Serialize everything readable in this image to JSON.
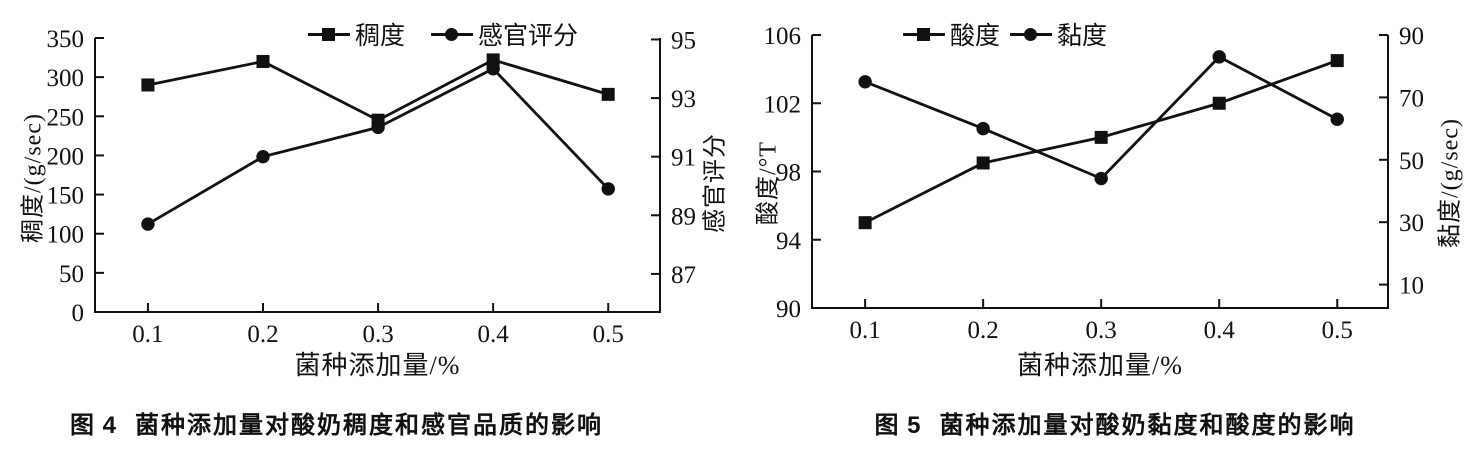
{
  "page": {
    "background": "#ffffff",
    "ink": "#111111"
  },
  "chart_data": [
    {
      "type": "line",
      "caption_label": "图 4",
      "caption_title": "菌种添加量对酸奶稠度和感官品质的影响",
      "legend_position": "top",
      "grid": false,
      "x_axis": {
        "label": "菌种添加量/%",
        "ticks": [
          0.1,
          0.2,
          0.3,
          0.4,
          0.5
        ],
        "range": [
          0.054,
          0.545
        ]
      },
      "left_axis": {
        "label": "稠度/(g/sec)",
        "ticks": [
          0,
          50,
          100,
          150,
          200,
          250,
          300,
          350
        ],
        "range": [
          0,
          350
        ]
      },
      "right_axis": {
        "label": "感官评分",
        "ticks": [
          87,
          89,
          91,
          93,
          95
        ],
        "range": [
          85.7,
          95.05
        ]
      },
      "x": [
        0.1,
        0.2,
        0.3,
        0.4,
        0.5
      ],
      "series": [
        {
          "name": "稠度",
          "axis": "left",
          "marker": "square",
          "values": [
            290,
            320,
            245,
            322,
            278
          ]
        },
        {
          "name": "感官评分",
          "axis": "right",
          "marker": "circle",
          "values": [
            88.7,
            91,
            92,
            94,
            89.9
          ]
        }
      ]
    },
    {
      "type": "line",
      "caption_label": "图 5",
      "caption_title": "菌种添加量对酸奶黏度和酸度的影响",
      "legend_position": "top",
      "grid": false,
      "x_axis": {
        "label": "菌种添加量/%",
        "ticks": [
          0.1,
          0.2,
          0.3,
          0.4,
          0.5
        ],
        "range": [
          0.055,
          0.543
        ]
      },
      "left_axis": {
        "label": "酸度/°T",
        "ticks": [
          90,
          94,
          98,
          102,
          106
        ],
        "range": [
          90,
          106
        ]
      },
      "right_axis": {
        "label": "黏度/(g/sec)",
        "ticks": [
          10,
          30,
          50,
          70,
          90
        ],
        "range": [
          2.5,
          90
        ]
      },
      "x": [
        0.1,
        0.2,
        0.3,
        0.4,
        0.5
      ],
      "series": [
        {
          "name": "酸度",
          "axis": "left",
          "marker": "square",
          "values": [
            95,
            98.5,
            100,
            102,
            104.5
          ]
        },
        {
          "name": "黏度",
          "axis": "right",
          "marker": "circle",
          "values": [
            75,
            60,
            44,
            83,
            63
          ]
        }
      ]
    }
  ]
}
